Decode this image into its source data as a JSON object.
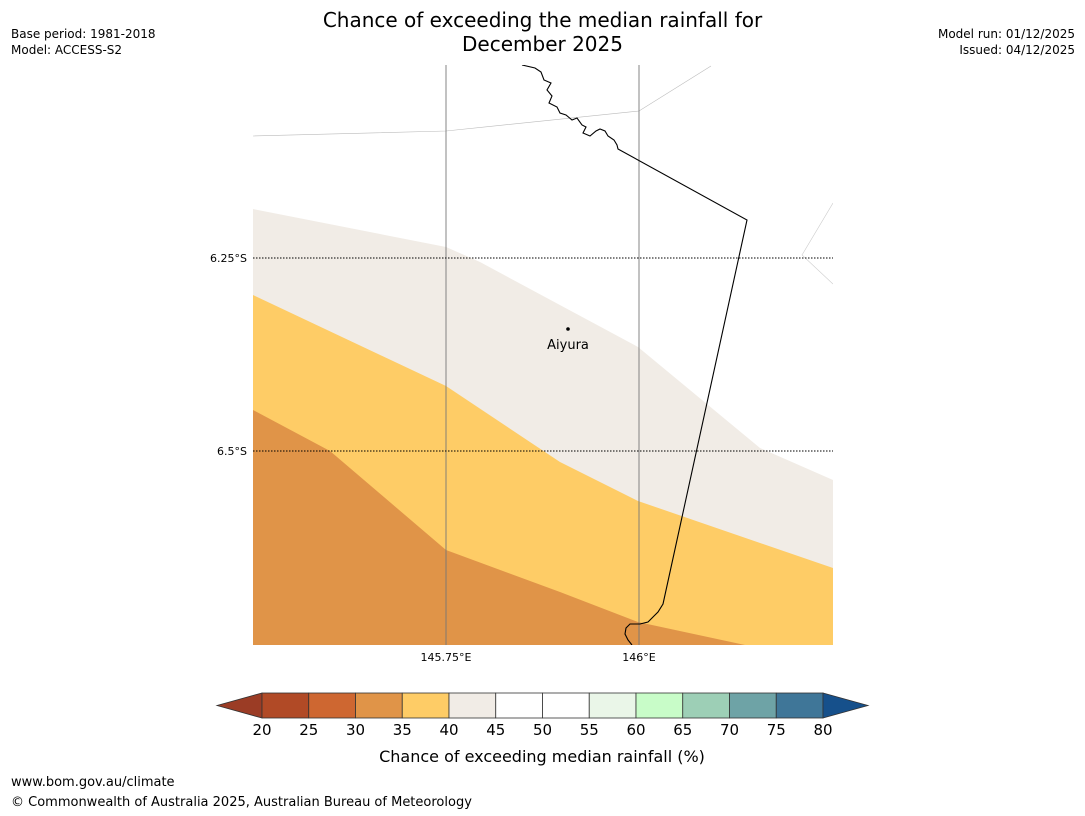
{
  "title": {
    "line1": "Chance of exceeding the median rainfall for",
    "line2": "December 2025"
  },
  "meta_left": {
    "base_period": "Base period: 1981-2018",
    "model": "Model: ACCESS-S2"
  },
  "meta_right": {
    "model_run": "Model run: 01/12/2025",
    "issued": "Issued: 04/12/2025"
  },
  "map": {
    "lat_labels": [
      "6.25°S",
      "6.5°S"
    ],
    "lon_labels": [
      "145.75°E",
      "146°E"
    ],
    "place": "Aiyura",
    "band_colors": {
      "b30_35": "#E09448",
      "b35_40": "#FECC66",
      "b40_45": "#F1ECE6"
    }
  },
  "colorbar": {
    "label": "Chance of exceeding median rainfall (%)",
    "ticks": [
      "20",
      "25",
      "30",
      "35",
      "40",
      "45",
      "50",
      "55",
      "60",
      "65",
      "70",
      "75",
      "80"
    ],
    "low_color": "#9B3C25",
    "high_color": "#16508B",
    "colors": [
      "#B14A26",
      "#CE6731",
      "#E09448",
      "#FECC66",
      "#F1ECE6",
      "#FFFFFF",
      "#FFFFFF",
      "#EAF6E8",
      "#C8FCC8",
      "#9DCFB6",
      "#6EA3A6",
      "#3F7698"
    ]
  },
  "footer": {
    "url": "www.bom.gov.au/climate",
    "copyright": "© Commonwealth of Australia 2025, Australian Bureau of Meteorology"
  }
}
